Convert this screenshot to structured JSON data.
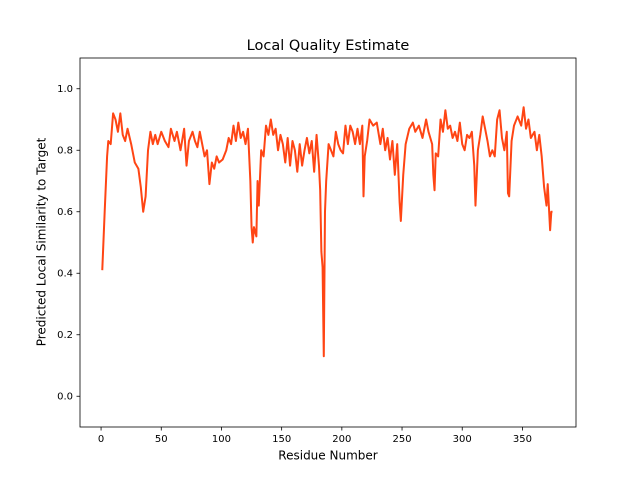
{
  "chart_data": {
    "type": "line",
    "title": "Local Quality Estimate",
    "xlabel": "Residue Number",
    "ylabel": "Predicted Local Similarity to Target",
    "color": "#ff4514",
    "xlim": [
      -17.5,
      394.5
    ],
    "ylim": [
      -0.1,
      1.1
    ],
    "xticks": [
      0,
      50,
      100,
      150,
      200,
      250,
      300,
      350
    ],
    "yticks": [
      {
        "value": 0.0,
        "label": "0.0"
      },
      0.2,
      0.4,
      0.6,
      0.8,
      {
        "value": 1.0,
        "label": "1.0"
      }
    ],
    "x": [
      1,
      3,
      5,
      6,
      8,
      10,
      12,
      14,
      16,
      18,
      20,
      22,
      25,
      28,
      31,
      33,
      35,
      37,
      39,
      41,
      43,
      45,
      47,
      50,
      53,
      56,
      58,
      61,
      63,
      66,
      69,
      71,
      73,
      76,
      78,
      80,
      82,
      84,
      86,
      88,
      90,
      92,
      94,
      96,
      98,
      101,
      104,
      106,
      108,
      110,
      112,
      114,
      116,
      118,
      120,
      122,
      124,
      125,
      126,
      127,
      129,
      130,
      131,
      133,
      135,
      137,
      139,
      141,
      143,
      145,
      147,
      149,
      151,
      153,
      155,
      157,
      159,
      161,
      163,
      165,
      167,
      169,
      171,
      173,
      175,
      177,
      179,
      181,
      182,
      183,
      184,
      185,
      186,
      187,
      189,
      191,
      193,
      195,
      197,
      199,
      201,
      203,
      205,
      207,
      209,
      211,
      213,
      215,
      217,
      218,
      219,
      221,
      223,
      226,
      229,
      232,
      234,
      236,
      238,
      240,
      242,
      244,
      246,
      248,
      249,
      251,
      253,
      256,
      259,
      261,
      264,
      267,
      270,
      272,
      275,
      276,
      277,
      278,
      280,
      282,
      284,
      286,
      288,
      290,
      292,
      294,
      296,
      298,
      300,
      302,
      304,
      306,
      308,
      310,
      311,
      313,
      315,
      317,
      319,
      321,
      323,
      325,
      327,
      329,
      331,
      333,
      335,
      337,
      338,
      339,
      341,
      343,
      346,
      349,
      351,
      353,
      355,
      357,
      360,
      362,
      364,
      366,
      368,
      370,
      371,
      373,
      374,
      375
    ],
    "values": [
      0.41,
      0.6,
      0.78,
      0.83,
      0.82,
      0.92,
      0.9,
      0.86,
      0.92,
      0.85,
      0.83,
      0.87,
      0.82,
      0.76,
      0.74,
      0.68,
      0.6,
      0.65,
      0.8,
      0.86,
      0.82,
      0.85,
      0.82,
      0.86,
      0.83,
      0.81,
      0.87,
      0.83,
      0.86,
      0.8,
      0.87,
      0.75,
      0.83,
      0.86,
      0.83,
      0.81,
      0.86,
      0.82,
      0.78,
      0.8,
      0.69,
      0.76,
      0.74,
      0.78,
      0.76,
      0.77,
      0.8,
      0.84,
      0.82,
      0.88,
      0.83,
      0.89,
      0.84,
      0.86,
      0.82,
      0.87,
      0.7,
      0.55,
      0.5,
      0.55,
      0.52,
      0.7,
      0.62,
      0.8,
      0.78,
      0.88,
      0.85,
      0.9,
      0.85,
      0.87,
      0.8,
      0.85,
      0.82,
      0.76,
      0.84,
      0.75,
      0.83,
      0.8,
      0.73,
      0.82,
      0.75,
      0.8,
      0.84,
      0.79,
      0.83,
      0.73,
      0.85,
      0.75,
      0.67,
      0.47,
      0.42,
      0.13,
      0.6,
      0.7,
      0.82,
      0.8,
      0.78,
      0.86,
      0.82,
      0.8,
      0.79,
      0.88,
      0.82,
      0.88,
      0.86,
      0.82,
      0.87,
      0.82,
      0.88,
      0.65,
      0.78,
      0.83,
      0.9,
      0.88,
      0.89,
      0.82,
      0.87,
      0.8,
      0.84,
      0.77,
      0.83,
      0.72,
      0.82,
      0.63,
      0.57,
      0.72,
      0.82,
      0.87,
      0.89,
      0.86,
      0.88,
      0.84,
      0.9,
      0.86,
      0.82,
      0.72,
      0.67,
      0.79,
      0.78,
      0.9,
      0.86,
      0.93,
      0.87,
      0.88,
      0.84,
      0.86,
      0.83,
      0.89,
      0.82,
      0.8,
      0.85,
      0.84,
      0.86,
      0.75,
      0.62,
      0.8,
      0.85,
      0.91,
      0.87,
      0.83,
      0.78,
      0.8,
      0.78,
      0.9,
      0.93,
      0.84,
      0.8,
      0.86,
      0.66,
      0.65,
      0.83,
      0.88,
      0.91,
      0.88,
      0.94,
      0.87,
      0.9,
      0.84,
      0.86,
      0.8,
      0.85,
      0.78,
      0.68,
      0.62,
      0.69,
      0.54,
      0.6,
      0.6
    ]
  }
}
